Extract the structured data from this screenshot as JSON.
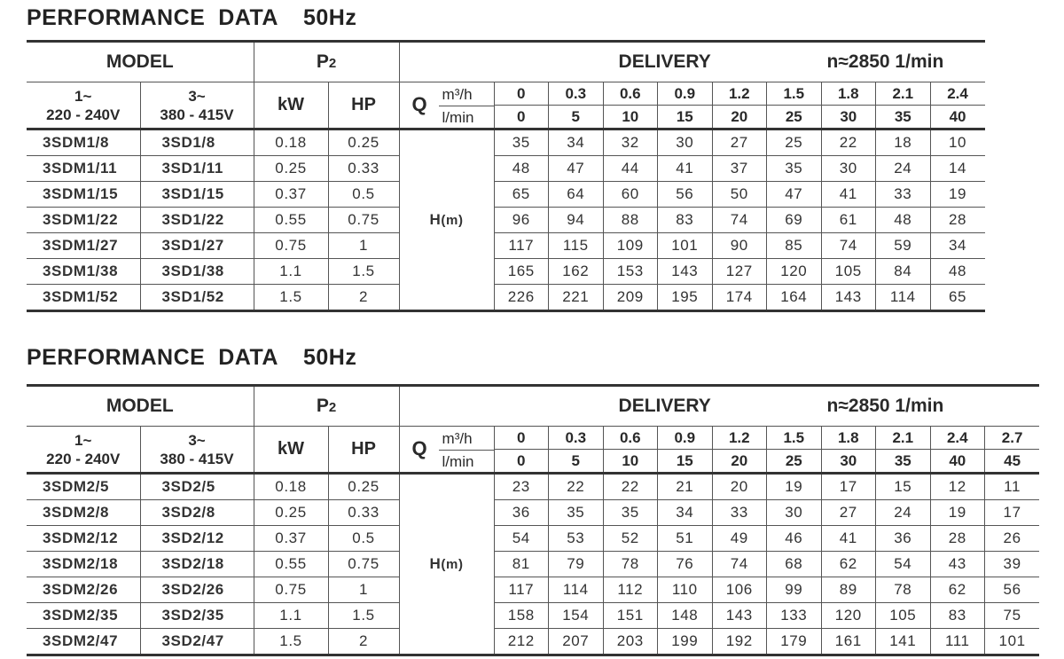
{
  "tables": [
    {
      "title": "PERFORMANCE  DATA",
      "freq": "50Hz",
      "model_label": "MODEL",
      "p2_symbol": "P",
      "p2_sub": "2",
      "delivery_label": "DELIVERY",
      "speed": "n≈2850 1/min",
      "single_phase": "1~",
      "single_voltage": "220 - 240V",
      "three_phase": "3~",
      "three_voltage": "380 - 415V",
      "kw_label": "kW",
      "hp_label": "HP",
      "q_label": "Q",
      "unit_m3h": "m³/h",
      "unit_lmin": "l/min",
      "h_label": "H",
      "h_unit": "(m)",
      "m3h": [
        "0",
        "0.3",
        "0.6",
        "0.9",
        "1.2",
        "1.5",
        "1.8",
        "2.1",
        "2.4"
      ],
      "lmin": [
        "0",
        "5",
        "10",
        "15",
        "20",
        "25",
        "30",
        "35",
        "40"
      ],
      "rows": [
        {
          "m1": "3SDM1/8",
          "m3": "3SD1/8",
          "kw": "0.18",
          "hp": "0.25",
          "h": [
            "35",
            "34",
            "32",
            "30",
            "27",
            "25",
            "22",
            "18",
            "10"
          ]
        },
        {
          "m1": "3SDM1/11",
          "m3": "3SD1/11",
          "kw": "0.25",
          "hp": "0.33",
          "h": [
            "48",
            "47",
            "44",
            "41",
            "37",
            "35",
            "30",
            "24",
            "14"
          ]
        },
        {
          "m1": "3SDM1/15",
          "m3": "3SD1/15",
          "kw": "0.37",
          "hp": "0.5",
          "h": [
            "65",
            "64",
            "60",
            "56",
            "50",
            "47",
            "41",
            "33",
            "19"
          ]
        },
        {
          "m1": "3SDM1/22",
          "m3": "3SD1/22",
          "kw": "0.55",
          "hp": "0.75",
          "h": [
            "96",
            "94",
            "88",
            "83",
            "74",
            "69",
            "61",
            "48",
            "28"
          ]
        },
        {
          "m1": "3SDM1/27",
          "m3": "3SD1/27",
          "kw": "0.75",
          "hp": "1",
          "h": [
            "117",
            "115",
            "109",
            "101",
            "90",
            "85",
            "74",
            "59",
            "34"
          ]
        },
        {
          "m1": "3SDM1/38",
          "m3": "3SD1/38",
          "kw": "1.1",
          "hp": "1.5",
          "h": [
            "165",
            "162",
            "153",
            "143",
            "127",
            "120",
            "105",
            "84",
            "48"
          ]
        },
        {
          "m1": "3SDM1/52",
          "m3": "3SD1/52",
          "kw": "1.5",
          "hp": "2",
          "h": [
            "226",
            "221",
            "209",
            "195",
            "174",
            "164",
            "143",
            "114",
            "65"
          ]
        }
      ]
    },
    {
      "title": "PERFORMANCE  DATA",
      "freq": "50Hz",
      "model_label": "MODEL",
      "p2_symbol": "P",
      "p2_sub": "2",
      "delivery_label": "DELIVERY",
      "speed": "n≈2850 1/min",
      "single_phase": "1~",
      "single_voltage": "220 - 240V",
      "three_phase": "3~",
      "three_voltage": "380 - 415V",
      "kw_label": "kW",
      "hp_label": "HP",
      "q_label": "Q",
      "unit_m3h": "m³/h",
      "unit_lmin": "l/min",
      "h_label": "H",
      "h_unit": "(m)",
      "m3h": [
        "0",
        "0.3",
        "0.6",
        "0.9",
        "1.2",
        "1.5",
        "1.8",
        "2.1",
        "2.4",
        "2.7"
      ],
      "lmin": [
        "0",
        "5",
        "10",
        "15",
        "20",
        "25",
        "30",
        "35",
        "40",
        "45"
      ],
      "rows": [
        {
          "m1": "3SDM2/5",
          "m3": "3SD2/5",
          "kw": "0.18",
          "hp": "0.25",
          "h": [
            "23",
            "22",
            "22",
            "21",
            "20",
            "19",
            "17",
            "15",
            "12",
            "11"
          ]
        },
        {
          "m1": "3SDM2/8",
          "m3": "3SD2/8",
          "kw": "0.25",
          "hp": "0.33",
          "h": [
            "36",
            "35",
            "35",
            "34",
            "33",
            "30",
            "27",
            "24",
            "19",
            "17"
          ]
        },
        {
          "m1": "3SDM2/12",
          "m3": "3SD2/12",
          "kw": "0.37",
          "hp": "0.5",
          "h": [
            "54",
            "53",
            "52",
            "51",
            "49",
            "46",
            "41",
            "36",
            "28",
            "26"
          ]
        },
        {
          "m1": "3SDM2/18",
          "m3": "3SD2/18",
          "kw": "0.55",
          "hp": "0.75",
          "h": [
            "81",
            "79",
            "78",
            "76",
            "74",
            "68",
            "62",
            "54",
            "43",
            "39"
          ]
        },
        {
          "m1": "3SDM2/26",
          "m3": "3SD2/26",
          "kw": "0.75",
          "hp": "1",
          "h": [
            "117",
            "114",
            "112",
            "110",
            "106",
            "99",
            "89",
            "78",
            "62",
            "56"
          ]
        },
        {
          "m1": "3SDM2/35",
          "m3": "3SD2/35",
          "kw": "1.1",
          "hp": "1.5",
          "h": [
            "158",
            "154",
            "151",
            "148",
            "143",
            "133",
            "120",
            "105",
            "83",
            "75"
          ]
        },
        {
          "m1": "3SDM2/47",
          "m3": "3SD2/47",
          "kw": "1.5",
          "hp": "2",
          "h": [
            "212",
            "207",
            "203",
            "199",
            "192",
            "179",
            "161",
            "141",
            "111",
            "101"
          ]
        }
      ]
    }
  ]
}
